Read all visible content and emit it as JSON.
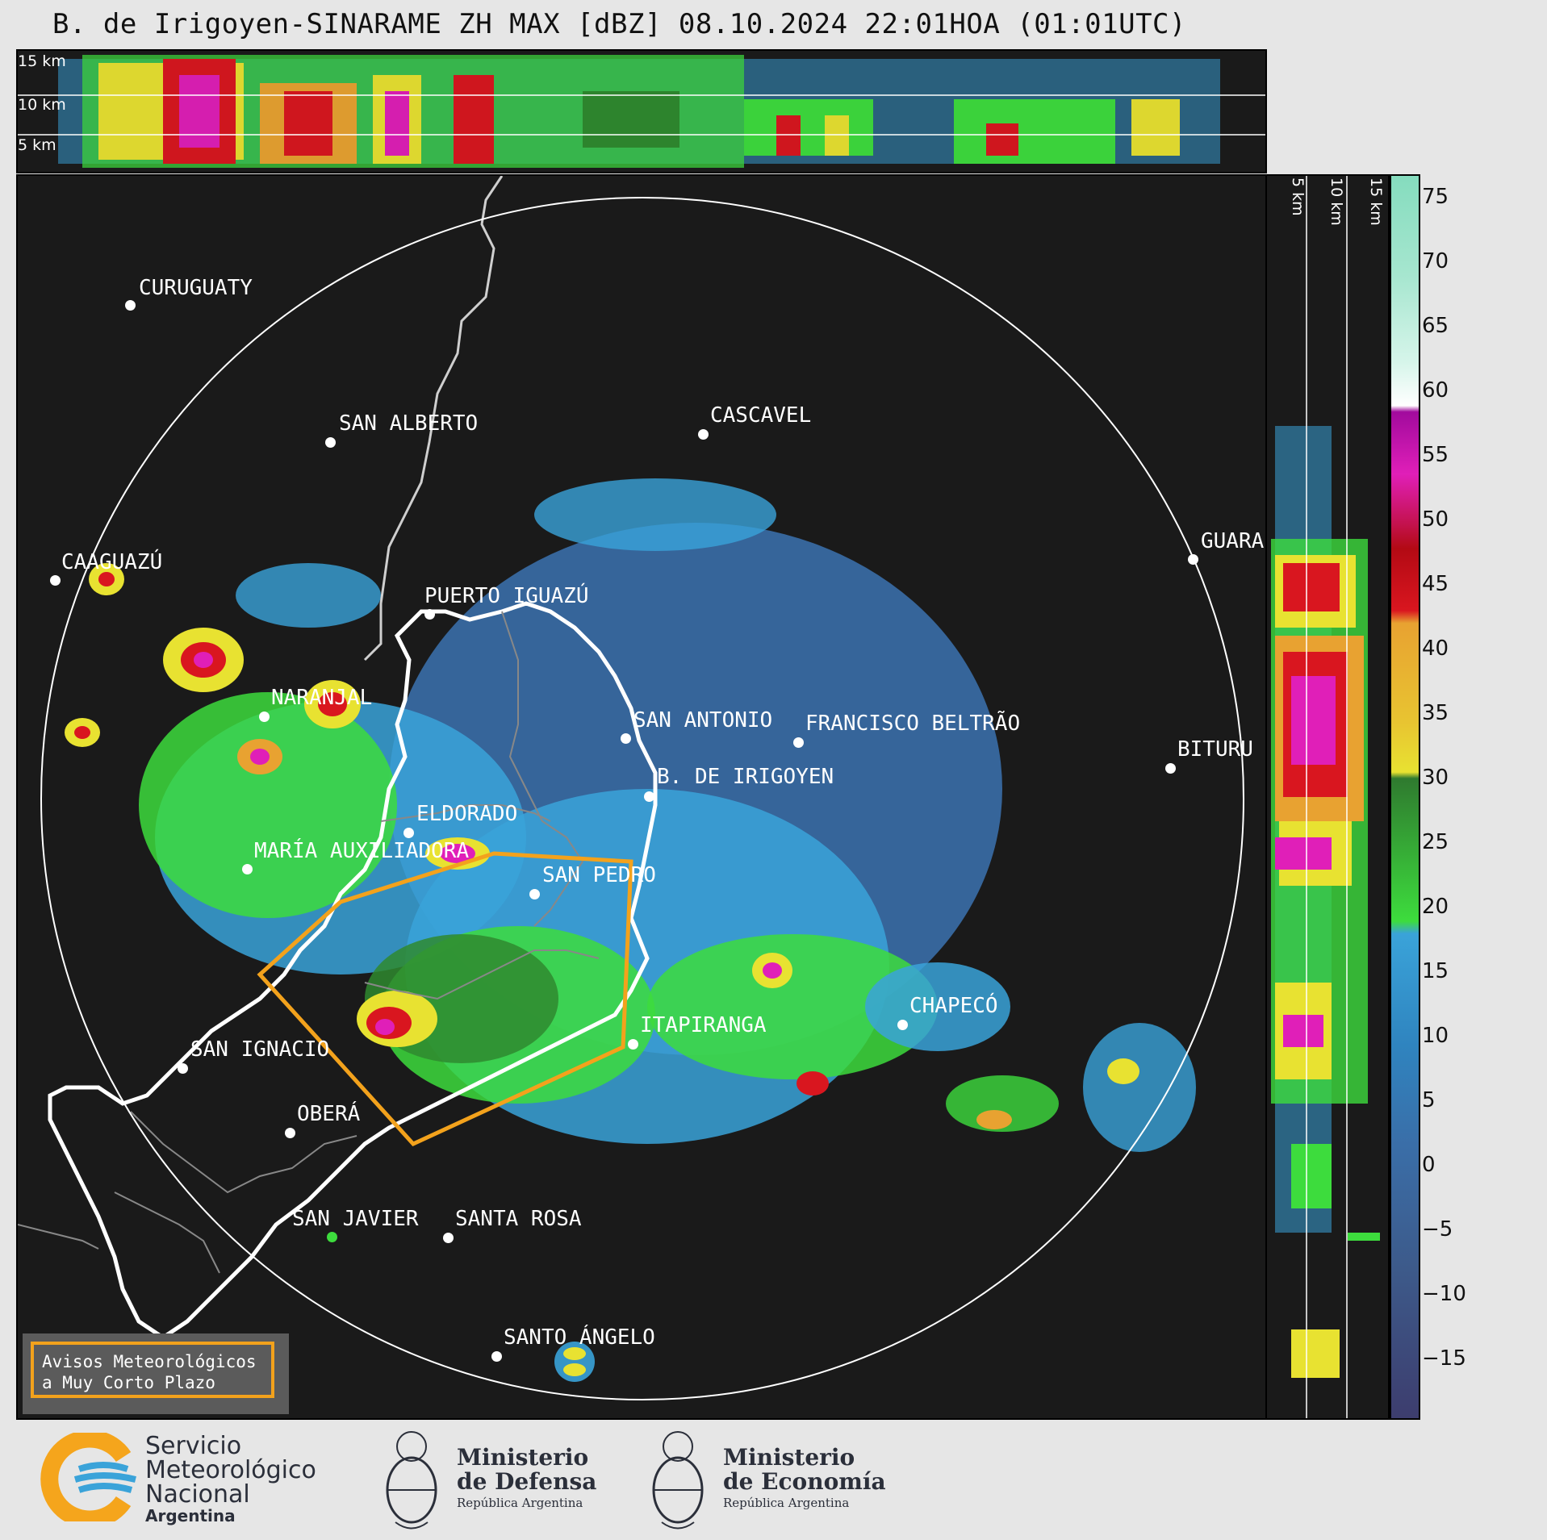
{
  "title": "B. de Irigoyen-SINARAME ZH MAX [dBZ] 08.10.2024 22:01HOA (01:01UTC)",
  "top_panel": {
    "height_labels": [
      "15 km",
      "10 km",
      "5 km"
    ]
  },
  "side_panel": {
    "height_labels": [
      "5 km",
      "10 km",
      "15 km"
    ]
  },
  "colorbar": {
    "ticks": [
      "75",
      "70",
      "65",
      "60",
      "55",
      "50",
      "45",
      "40",
      "35",
      "30",
      "25",
      "20",
      "15",
      "10",
      "5",
      "0",
      "−5",
      "−10",
      "−15"
    ]
  },
  "map": {
    "places": [
      {
        "name": "CURUGUATY"
      },
      {
        "name": "SAN ALBERTO"
      },
      {
        "name": "CASCAVEL"
      },
      {
        "name": "CAAGUAZÚ"
      },
      {
        "name": "PUERTO IGUAZÚ"
      },
      {
        "name": "GUARA"
      },
      {
        "name": "NARANJAL"
      },
      {
        "name": "SAN ANTONIO"
      },
      {
        "name": "FRANCISCO BELTRÃO"
      },
      {
        "name": "BITURU"
      },
      {
        "name": "B. DE IRIGOYEN"
      },
      {
        "name": "ELDORADO"
      },
      {
        "name": "MARÍA AUXILIADORA"
      },
      {
        "name": "SAN PEDRO"
      },
      {
        "name": "CHAPECÓ"
      },
      {
        "name": "ITAPIRANGA"
      },
      {
        "name": "SAN IGNACIO"
      },
      {
        "name": "OBERÁ"
      },
      {
        "name": "SAN JAVIER"
      },
      {
        "name": "SANTA ROSA"
      },
      {
        "name": "SANTO ÁNGELO"
      }
    ]
  },
  "legend": {
    "line1": "Avisos Meteorológicos",
    "line2": "a Muy Corto Plazo"
  },
  "footer": {
    "smn": {
      "line1": "Servicio",
      "line2": "Meteorológico",
      "line3": "Nacional",
      "line4": "Argentina"
    },
    "defensa": {
      "line1": "Ministerio",
      "line2": "de Defensa",
      "line3": "República Argentina"
    },
    "economia": {
      "line1": "Ministerio",
      "line2": "de Economía",
      "line3": "República Argentina"
    }
  }
}
